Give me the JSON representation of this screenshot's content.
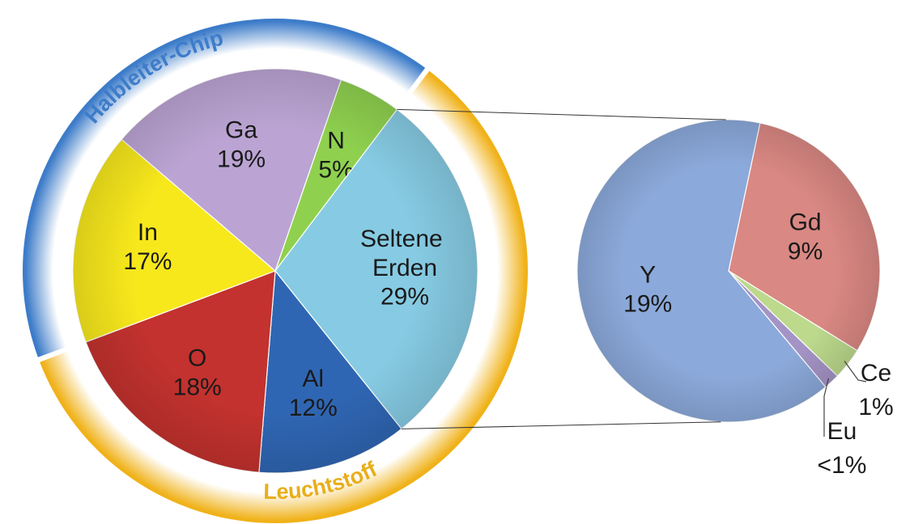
{
  "chart_data": [
    {
      "type": "pie",
      "categories": [
        "N",
        "Seltene Erden",
        "Al",
        "O",
        "In",
        "Ga"
      ],
      "values": [
        5,
        29,
        12,
        18,
        17,
        19
      ],
      "value_labels": [
        "5%",
        "29%",
        "12%",
        "18%",
        "17%",
        "19%"
      ],
      "colors": [
        "#8fd14f",
        "#86cbe3",
        "#2f66b3",
        "#c3322e",
        "#f7e81c",
        "#bba4d3"
      ],
      "groups": [
        {
          "label": "Halbleiter-Chip",
          "color": "#3d7cc9"
        },
        {
          "label": "Leuchtstoff",
          "color": "#e9ae1b"
        }
      ]
    },
    {
      "type": "pie",
      "categories": [
        "Gd",
        "Ce",
        "Eu",
        "Y"
      ],
      "values": [
        9,
        1,
        0.5,
        19
      ],
      "value_labels": [
        "9%",
        "1%",
        "<1%",
        "19%"
      ],
      "colors": [
        "#da8883",
        "#bcd98c",
        "#a494c6",
        "#8ba9da"
      ]
    }
  ]
}
